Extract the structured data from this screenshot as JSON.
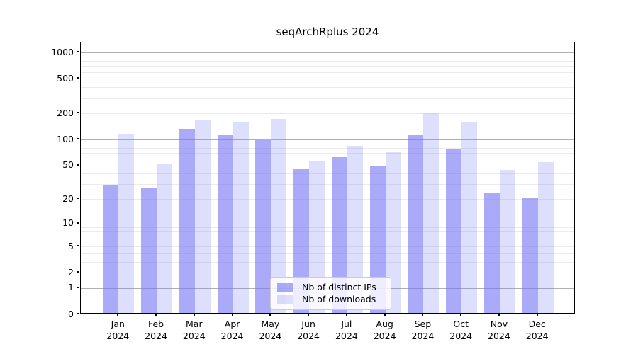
{
  "chart_data": {
    "type": "bar",
    "title": "seqArchRplus 2024",
    "x_categories": [
      "Jan",
      "Feb",
      "Mar",
      "Apr",
      "May",
      "Jun",
      "Jul",
      "Aug",
      "Sep",
      "Oct",
      "Nov",
      "Dec"
    ],
    "x_year": "2024",
    "series": [
      {
        "name": "Nb of distinct IPs",
        "color": "rgba(118,118,245,0.62)",
        "values": [
          28,
          26,
          129,
          111,
          95,
          44,
          60,
          48,
          108,
          76,
          23,
          20
        ]
      },
      {
        "name": "Nb of downloads",
        "color": "rgba(118,118,245,0.24)",
        "values": [
          113,
          51,
          163,
          152,
          166,
          54,
          82,
          70,
          194,
          151,
          43,
          53
        ]
      }
    ],
    "yscale": "log1p",
    "ylim": [
      0,
      1306
    ],
    "yticks": [
      0,
      1,
      2,
      5,
      10,
      20,
      50,
      100,
      200,
      500,
      1000
    ],
    "major_gridlines": [
      1,
      10,
      100,
      1000
    ],
    "minor_gridlines": [
      2,
      3,
      4,
      5,
      6,
      7,
      8,
      9,
      20,
      30,
      40,
      50,
      60,
      70,
      80,
      90,
      200,
      300,
      400,
      500,
      600,
      700,
      800,
      900
    ],
    "grid": true,
    "legend_position": "bottom-center"
  },
  "legend": {
    "items": [
      {
        "label": "Nb of distinct IPs"
      },
      {
        "label": "Nb of downloads"
      }
    ]
  },
  "colors": {
    "bar_dark": "rgba(118,118,245,0.62)",
    "bar_light": "rgba(118,118,245,0.24)",
    "grid_major": "#b0b0b0",
    "grid_minor": "#ebebeb",
    "spine": "#000000"
  }
}
